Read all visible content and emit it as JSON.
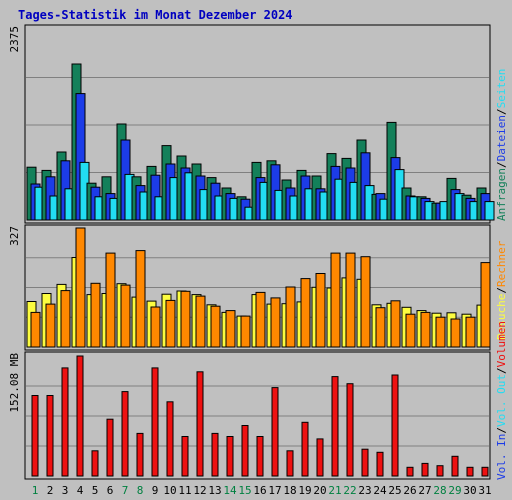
{
  "title": "Tages-Statistik im Monat Dezember 2024",
  "colors": {
    "background": "#C0C0C0",
    "title": "#0000C0",
    "anfragen": "#14805A",
    "dateien": "#1C3CE8",
    "seiten": "#22DDF2",
    "besuche": "#FCFC40",
    "rechner": "#FF8800",
    "volumen": "#EE1111",
    "weekend": "#008040",
    "text": "#000000"
  },
  "axis_max_labels": {
    "top": "2375",
    "middle": "327",
    "bottom": "152.08 MB"
  },
  "legend": {
    "top": [
      {
        "text": "Anfragen",
        "color": "#14805A"
      },
      {
        "text": "Dateien",
        "color": "#1C3CE8"
      },
      {
        "text": "Seiten",
        "color": "#22DDF2"
      }
    ],
    "middle": [
      {
        "text": "Besuche",
        "color": "#FCFC40"
      },
      {
        "text": "Rechner",
        "color": "#FF8800"
      }
    ],
    "bottom": [
      {
        "text": "Vol. In",
        "color": "#1C3CE8"
      },
      {
        "text": "Vol. Out",
        "color": "#22DDF2"
      },
      {
        "text": "Volumen",
        "color": "#EE1111"
      }
    ]
  },
  "separators": {
    "middle_bottom": "/",
    "bottom": "/"
  },
  "chart_data": [
    {
      "type": "bar",
      "panel": "top",
      "categories": [
        "1",
        "2",
        "3",
        "4",
        "5",
        "6",
        "7",
        "8",
        "9",
        "10",
        "11",
        "12",
        "13",
        "14",
        "15",
        "16",
        "17",
        "18",
        "19",
        "20",
        "21",
        "22",
        "23",
        "24",
        "25",
        "26",
        "27",
        "28",
        "29",
        "30",
        "31"
      ],
      "weekend": [
        "1",
        "7",
        "8",
        "14",
        "15",
        "21",
        "22",
        "28",
        "29"
      ],
      "ylim": [
        0,
        2375
      ],
      "series": [
        {
          "name": "Anfragen",
          "values": [
            660,
            620,
            850,
            1950,
            460,
            540,
            1200,
            540,
            670,
            930,
            800,
            700,
            530,
            400,
            290,
            720,
            740,
            500,
            620,
            550,
            830,
            770,
            1000,
            320,
            1220,
            400,
            290,
            210,
            520,
            310,
            400
          ]
        },
        {
          "name": "Dateien",
          "values": [
            450,
            540,
            740,
            1580,
            410,
            330,
            1000,
            430,
            560,
            700,
            650,
            550,
            460,
            330,
            260,
            530,
            690,
            400,
            550,
            390,
            670,
            650,
            840,
            330,
            780,
            300,
            270,
            210,
            380,
            270,
            330
          ]
        },
        {
          "name": "Seiten",
          "values": [
            410,
            300,
            390,
            720,
            290,
            270,
            570,
            350,
            290,
            530,
            590,
            380,
            300,
            270,
            160,
            470,
            370,
            300,
            390,
            350,
            510,
            470,
            430,
            260,
            630,
            290,
            230,
            230,
            330,
            230,
            230
          ]
        }
      ]
    },
    {
      "type": "bar",
      "panel": "middle",
      "categories": [
        "1",
        "2",
        "3",
        "4",
        "5",
        "6",
        "7",
        "8",
        "9",
        "10",
        "11",
        "12",
        "13",
        "14",
        "15",
        "16",
        "17",
        "18",
        "19",
        "20",
        "21",
        "22",
        "23",
        "24",
        "25",
        "26",
        "27",
        "28",
        "29",
        "30",
        "31"
      ],
      "ylim": [
        0,
        327
      ],
      "series": [
        {
          "name": "Besuche",
          "values": [
            125,
            147,
            172,
            246,
            144,
            147,
            174,
            137,
            126,
            145,
            154,
            144,
            116,
            95,
            85,
            144,
            118,
            119,
            124,
            164,
            162,
            190,
            186,
            116,
            120,
            109,
            100,
            93,
            94,
            90,
            115
          ]
        },
        {
          "name": "Rechner",
          "values": [
            95,
            118,
            155,
            327,
            175,
            258,
            170,
            265,
            110,
            128,
            153,
            140,
            112,
            100,
            85,
            150,
            135,
            165,
            188,
            202,
            258,
            258,
            248,
            108,
            127,
            90,
            95,
            82,
            77,
            82,
            232
          ]
        }
      ]
    },
    {
      "type": "bar",
      "panel": "bottom",
      "categories": [
        "1",
        "2",
        "3",
        "4",
        "5",
        "6",
        "7",
        "8",
        "9",
        "10",
        "11",
        "12",
        "13",
        "14",
        "15",
        "16",
        "17",
        "18",
        "19",
        "20",
        "21",
        "22",
        "23",
        "24",
        "25",
        "26",
        "27",
        "28",
        "29",
        "30",
        "31"
      ],
      "ylim": [
        0,
        152.08
      ],
      "series": [
        {
          "name": "Volumen",
          "unit": "MB",
          "values": [
            102,
            102,
            137,
            152.08,
            32,
            72,
            107,
            54,
            137,
            94,
            50,
            132,
            54,
            50,
            64,
            50,
            112,
            32,
            68,
            47,
            126,
            117,
            34,
            30,
            128,
            11,
            16,
            13,
            25,
            11,
            11
          ]
        }
      ]
    }
  ]
}
